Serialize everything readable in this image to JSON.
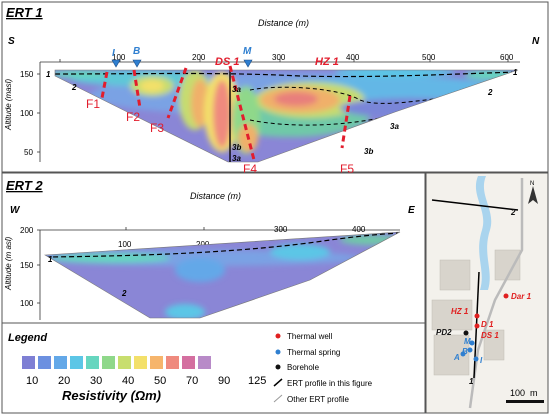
{
  "ert1": {
    "title": "ERT 1",
    "distance_label": "Distance (m)",
    "altitude_label": "Altitude (masl)",
    "dir_left": "S",
    "dir_right": "N",
    "x_ticks": [
      "100",
      "200",
      "300",
      "400",
      "500",
      "600"
    ],
    "y_ticks": [
      "150",
      "100",
      "50"
    ],
    "markers": {
      "I": "I",
      "B": "B",
      "M": "M",
      "DS1": "DS 1",
      "HZ1": "HZ 1"
    },
    "faults": [
      "F1",
      "F2",
      "F3",
      "F4",
      "F5"
    ],
    "units": {
      "u1a": "1",
      "u1b": "1",
      "u2a": "2",
      "u2b": "2",
      "u3a_top": "3a",
      "u3a_right": "3a",
      "u3a_bottom": "3a",
      "u3b_left": "3b",
      "u3b_right": "3b"
    }
  },
  "ert2": {
    "title": "ERT 2",
    "distance_label": "Distance (m)",
    "altitude_label": "Altitude (m asl)",
    "dir_left": "W",
    "dir_right": "E",
    "x_ticks": [
      "100",
      "200",
      "300",
      "400"
    ],
    "y_ticks": [
      "200",
      "150",
      "100"
    ],
    "units": {
      "u1": "1",
      "u2": "2"
    }
  },
  "legend": {
    "title": "Legend",
    "colors": [
      "#7e7fd4",
      "#6c90e0",
      "#63a8e8",
      "#5cc6e6",
      "#66d6bf",
      "#8fd88a",
      "#c8de6e",
      "#f3e06a",
      "#f6b56c",
      "#ef8a7e",
      "#d46fa0",
      "#b88ac8"
    ],
    "ticks": [
      "10",
      "20",
      "30",
      "40",
      "50",
      "70",
      "90",
      "125"
    ],
    "axis_title": "Resistivity (Ωm)"
  },
  "map_legend": {
    "items": [
      "Thermal well",
      "Thermal spring",
      "Borehole",
      "ERT profile in this figure",
      "Other ERT profile"
    ],
    "colors": {
      "thermal_well": "#e02020",
      "thermal_spring": "#2f7fd0",
      "borehole": "#111111"
    }
  },
  "map": {
    "labels": {
      "dar1": "Dar 1",
      "hz1": "HZ 1",
      "d1": "D 1",
      "ds1": "DS 1",
      "pd2": "PD2",
      "m": "M",
      "a": "A",
      "b": "B",
      "i": "I",
      "p1": "1",
      "p2": "2"
    },
    "north": "N",
    "scale": "100",
    "scale_unit": "m"
  }
}
